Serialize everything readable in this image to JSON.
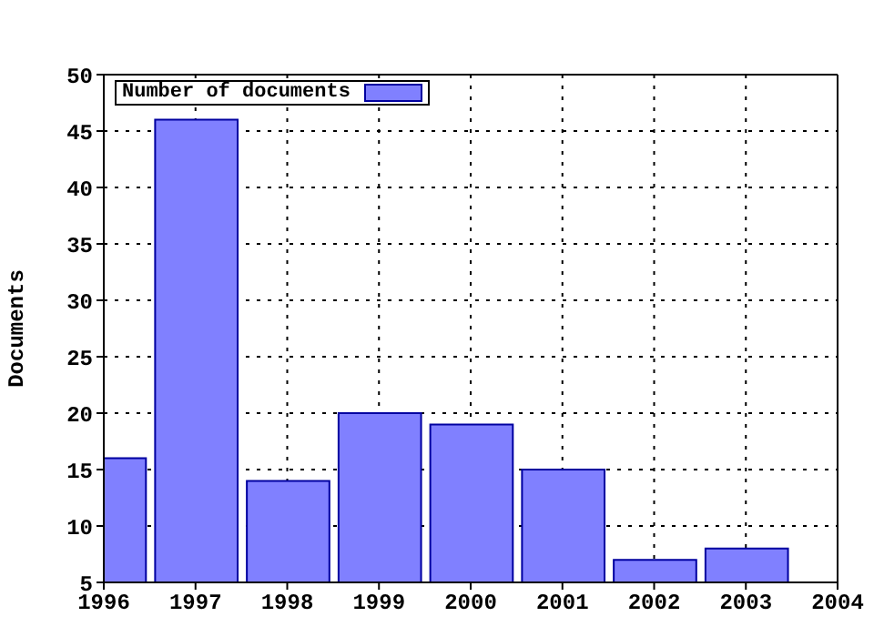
{
  "chart_data": {
    "type": "bar",
    "ylabel": "Documents",
    "x": [
      1996,
      1997,
      1998,
      1999,
      2000,
      2001,
      2002,
      2003
    ],
    "series": [
      {
        "name": "Number of documents",
        "color": "#8080ff",
        "values": [
          16,
          46,
          14,
          20,
          19,
          15,
          7,
          8
        ]
      }
    ],
    "xlim": [
      1996,
      2004
    ],
    "xticks": [
      1996,
      1997,
      1998,
      1999,
      2000,
      2001,
      2002,
      2003,
      2004
    ],
    "ylim": [
      5,
      50
    ],
    "yticks": [
      5,
      10,
      15,
      20,
      25,
      30,
      35,
      40,
      45,
      50
    ],
    "grid": true,
    "legend": "top left"
  }
}
